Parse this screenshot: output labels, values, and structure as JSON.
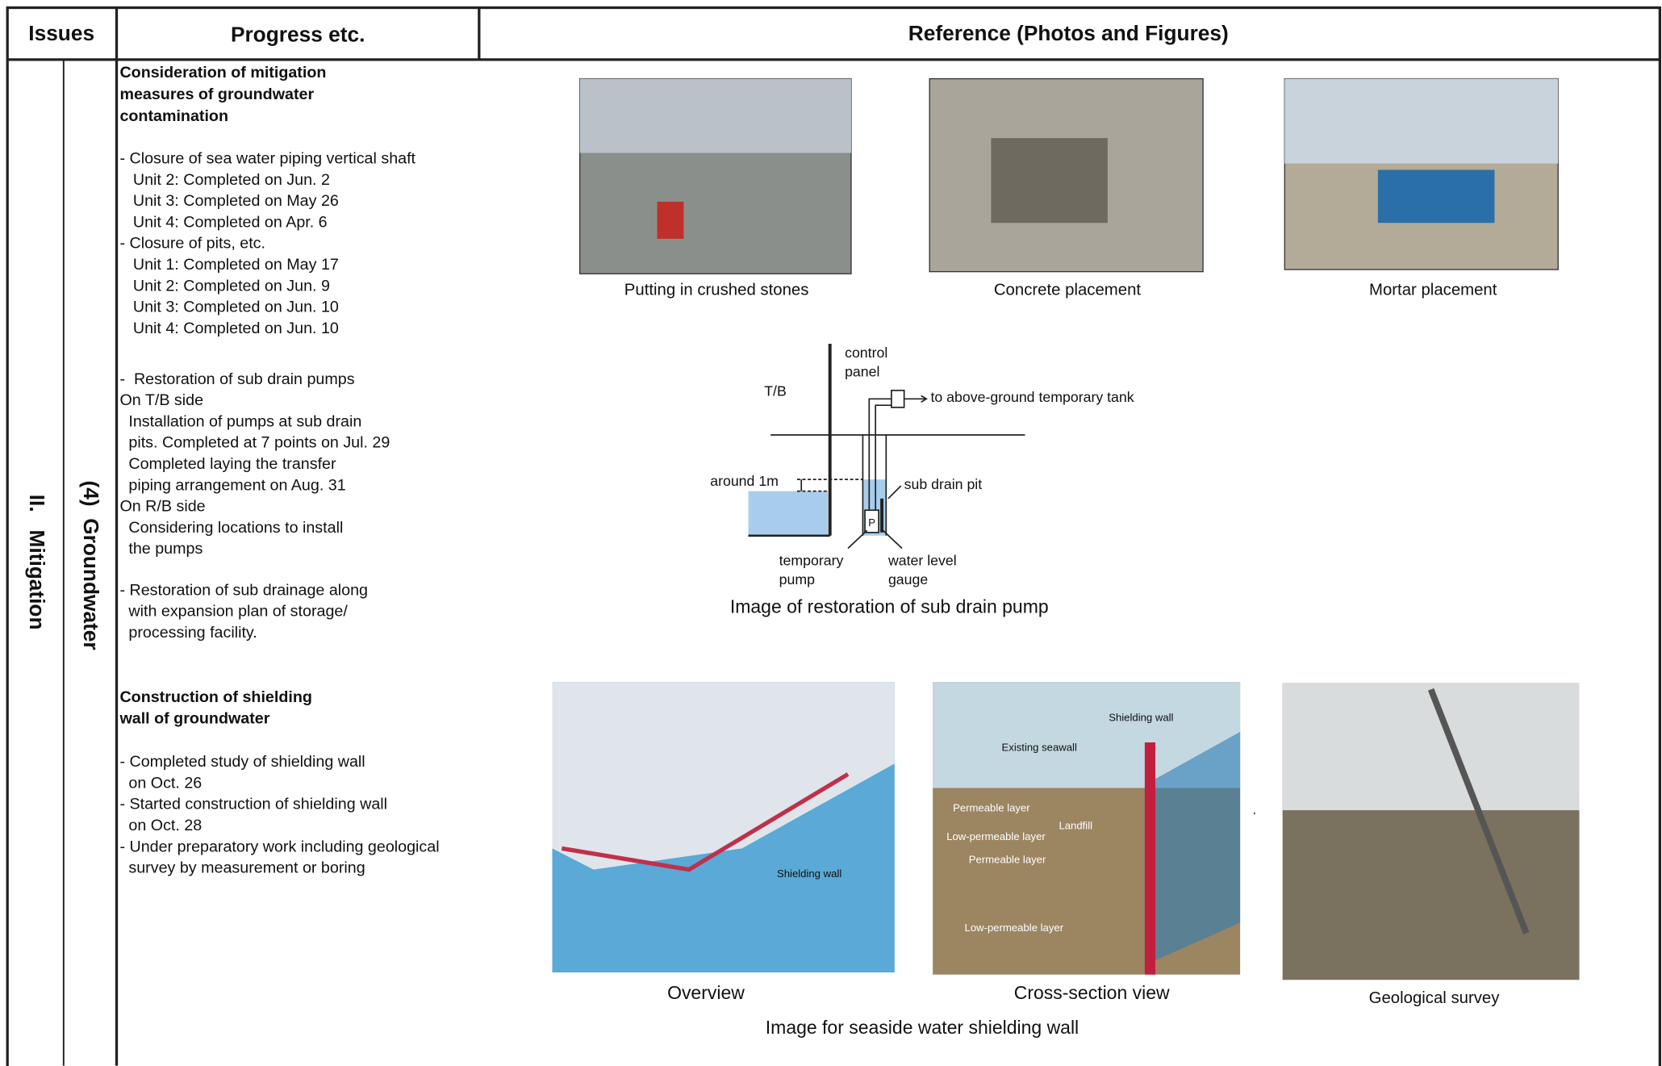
{
  "header": {
    "issues": "Issues",
    "progress": "Progress etc.",
    "reference": "Reference (Photos and Figures)"
  },
  "issue": {
    "category": "II.   Mitigation",
    "subcategory": "(4)  Groundwater"
  },
  "progress": {
    "section1": {
      "title": [
        "Consideration of mitigation",
        "measures of groundwater",
        "contamination"
      ],
      "closure": [
        "- Closure of sea water piping vertical shaft",
        "   Unit 2: Completed on Jun. 2",
        "   Unit 3: Completed on May 26",
        "   Unit 4: Completed on Apr. 6",
        "- Closure of pits, etc.",
        "   Unit 1: Completed on May 17",
        "   Unit 2: Completed on Jun. 9",
        "   Unit 3: Completed on Jun. 10",
        "   Unit 4: Completed on Jun. 10"
      ],
      "pumps": [
        "-  Restoration of sub drain pumps",
        "On T/B side",
        "  Installation of pumps at sub drain",
        "  pits. Completed at 7 points on Jul. 29",
        "  Completed laying the transfer",
        "  piping arrangement on Aug. 31",
        "On R/B side",
        "  Considering locations to install",
        "  the pumps"
      ],
      "drainage": [
        "- Restoration of sub drainage along",
        "  with expansion plan of storage/",
        "  processing facility."
      ]
    },
    "section2": {
      "title": [
        "Construction of shielding",
        "wall of groundwater"
      ],
      "lines": [
        "- Completed study of shielding wall",
        "  on Oct. 26",
        "- Started construction of shielding wall",
        "  on Oct. 28",
        "- Under preparatory work including geological",
        "  survey by measurement or boring"
      ]
    }
  },
  "reference": {
    "photos": [
      "Putting in crushed stones",
      "Concrete placement",
      "Mortar placement"
    ],
    "diagram": {
      "control_panel": [
        "control",
        "panel"
      ],
      "tb": "T/B",
      "tank": "to above-ground temporary tank",
      "around": "around 1m",
      "pit": "sub drain pit",
      "pump": [
        "temporary",
        "pump"
      ],
      "gauge": [
        "water level",
        "gauge"
      ],
      "p": "P",
      "caption": "Image of restoration of sub drain pump"
    },
    "wall": {
      "overview": "Overview",
      "overview_label": "Shielding wall",
      "cross_section": "Cross-section view",
      "cross_labels": [
        "Shielding wall",
        "Existing seawall",
        "Permeable layer",
        "Landfill",
        "Low-permeable layer",
        "Permeable layer",
        "Low-permeable layer"
      ],
      "survey": "Geological survey",
      "caption": "Image for seaside water shielding wall"
    }
  }
}
